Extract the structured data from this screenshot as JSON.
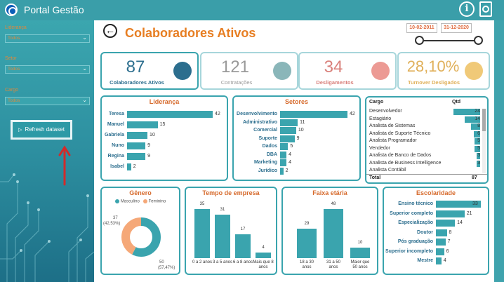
{
  "app": {
    "title": "Portal Gestão"
  },
  "sidebar": {
    "filters": [
      {
        "label": "Liderança",
        "value": "Todos"
      },
      {
        "label": "Setor",
        "value": "Todos"
      },
      {
        "label": "Cargo",
        "value": "Todos"
      }
    ],
    "refresh_label": "Refresh dataset"
  },
  "header": {
    "title": "Colaboradores Ativos",
    "date_start": "10-02-2011",
    "date_end": "31-12-2020"
  },
  "kpis": [
    {
      "value": "87",
      "label": "Colaboradores Ativos",
      "icon": "brain-head-icon"
    },
    {
      "value": "121",
      "label": "Contratações",
      "icon": "handshake-icon"
    },
    {
      "value": "34",
      "label": "Desligamentos",
      "icon": "people-exit-icon"
    },
    {
      "value": "28,10%",
      "label": "Turnover Desligados",
      "icon": "turnover-icon"
    }
  ],
  "lideranca": {
    "title": "Liderança",
    "items": [
      {
        "name": "Teresa",
        "value": "42",
        "n": 42
      },
      {
        "name": "Manuel",
        "value": "15",
        "n": 15
      },
      {
        "name": "Gabriela",
        "value": "10",
        "n": 10
      },
      {
        "name": "Nuno",
        "value": "9",
        "n": 9
      },
      {
        "name": "Regina",
        "value": "9",
        "n": 9
      },
      {
        "name": "Isabel",
        "value": "2",
        "n": 2
      }
    ]
  },
  "setores": {
    "title": "Setores",
    "items": [
      {
        "name": "Desenvolvimento",
        "value": "42",
        "n": 42
      },
      {
        "name": "Administrativo",
        "value": "11",
        "n": 11
      },
      {
        "name": "Comercial",
        "value": "10",
        "n": 10
      },
      {
        "name": "Suporte",
        "value": "9",
        "n": 9
      },
      {
        "name": "Dados",
        "value": "5",
        "n": 5
      },
      {
        "name": "DBA",
        "value": "4",
        "n": 4
      },
      {
        "name": "Marketing",
        "value": "4",
        "n": 4
      },
      {
        "name": "Jurídico",
        "value": "2",
        "n": 2
      }
    ]
  },
  "cargo": {
    "col_cargo": "Cargo",
    "col_qtd": "Qtd",
    "rows": [
      {
        "name": "Desenvolvedor",
        "value": "24",
        "n": 24
      },
      {
        "name": "Estagiário",
        "value": "14",
        "n": 14
      },
      {
        "name": "Analista de Sistemas",
        "value": "8",
        "n": 8
      },
      {
        "name": "Analista de Suporte Técnico",
        "value": "6",
        "n": 6
      },
      {
        "name": "Analista Programador",
        "value": "5",
        "n": 5
      },
      {
        "name": "Vendedor",
        "value": "5",
        "n": 5
      },
      {
        "name": "Analista de Banco de Dados",
        "value": "3",
        "n": 3
      },
      {
        "name": "Analista de Business Intelligence",
        "value": "3",
        "n": 3
      },
      {
        "name": "Analista Contábil",
        "value": "",
        "n": 0
      }
    ],
    "total_label": "Total",
    "total_value": "87"
  },
  "genero": {
    "title": "Gênero",
    "legend": [
      {
        "name": "Masculino",
        "color": "#3aa4ae"
      },
      {
        "name": "Feminino",
        "color": "#f5a878"
      }
    ],
    "feminino_label": "37",
    "feminino_pct": "(42,53%)",
    "masculino_label": "50",
    "masculino_pct": "(57,47%)",
    "feminino_n": 37,
    "masculino_n": 50
  },
  "tempo": {
    "title": "Tempo de empresa",
    "items": [
      {
        "label": "0 a 2 anos",
        "value": "35",
        "n": 35
      },
      {
        "label": "3 a 5 anos",
        "value": "31",
        "n": 31
      },
      {
        "label": "6 a 8 anos",
        "value": "17",
        "n": 17
      },
      {
        "label": "Mais que 8 anos",
        "value": "4",
        "n": 4
      }
    ]
  },
  "faixa": {
    "title": "Faixa etária",
    "items": [
      {
        "label": "18 a 30 anos",
        "value": "29",
        "n": 29
      },
      {
        "label": "31 a 50 anos",
        "value": "48",
        "n": 48
      },
      {
        "label": "Maior que 50 anos",
        "value": "10",
        "n": 10
      }
    ]
  },
  "escolaridade": {
    "title": "Escolaridade",
    "items": [
      {
        "name": "Ensino técnico",
        "value": "33",
        "n": 33
      },
      {
        "name": "Superior completo",
        "value": "21",
        "n": 21
      },
      {
        "name": "Especialização",
        "value": "14",
        "n": 14
      },
      {
        "name": "Doutor",
        "value": "8",
        "n": 8
      },
      {
        "name": "Pós graduação",
        "value": "7",
        "n": 7
      },
      {
        "name": "Superior incompleto",
        "value": "6",
        "n": 6
      },
      {
        "name": "Mestre",
        "value": "4",
        "n": 4
      }
    ]
  },
  "colors": {
    "accent": "#3aa4ae",
    "title": "#e77e22",
    "female": "#f5a878"
  }
}
